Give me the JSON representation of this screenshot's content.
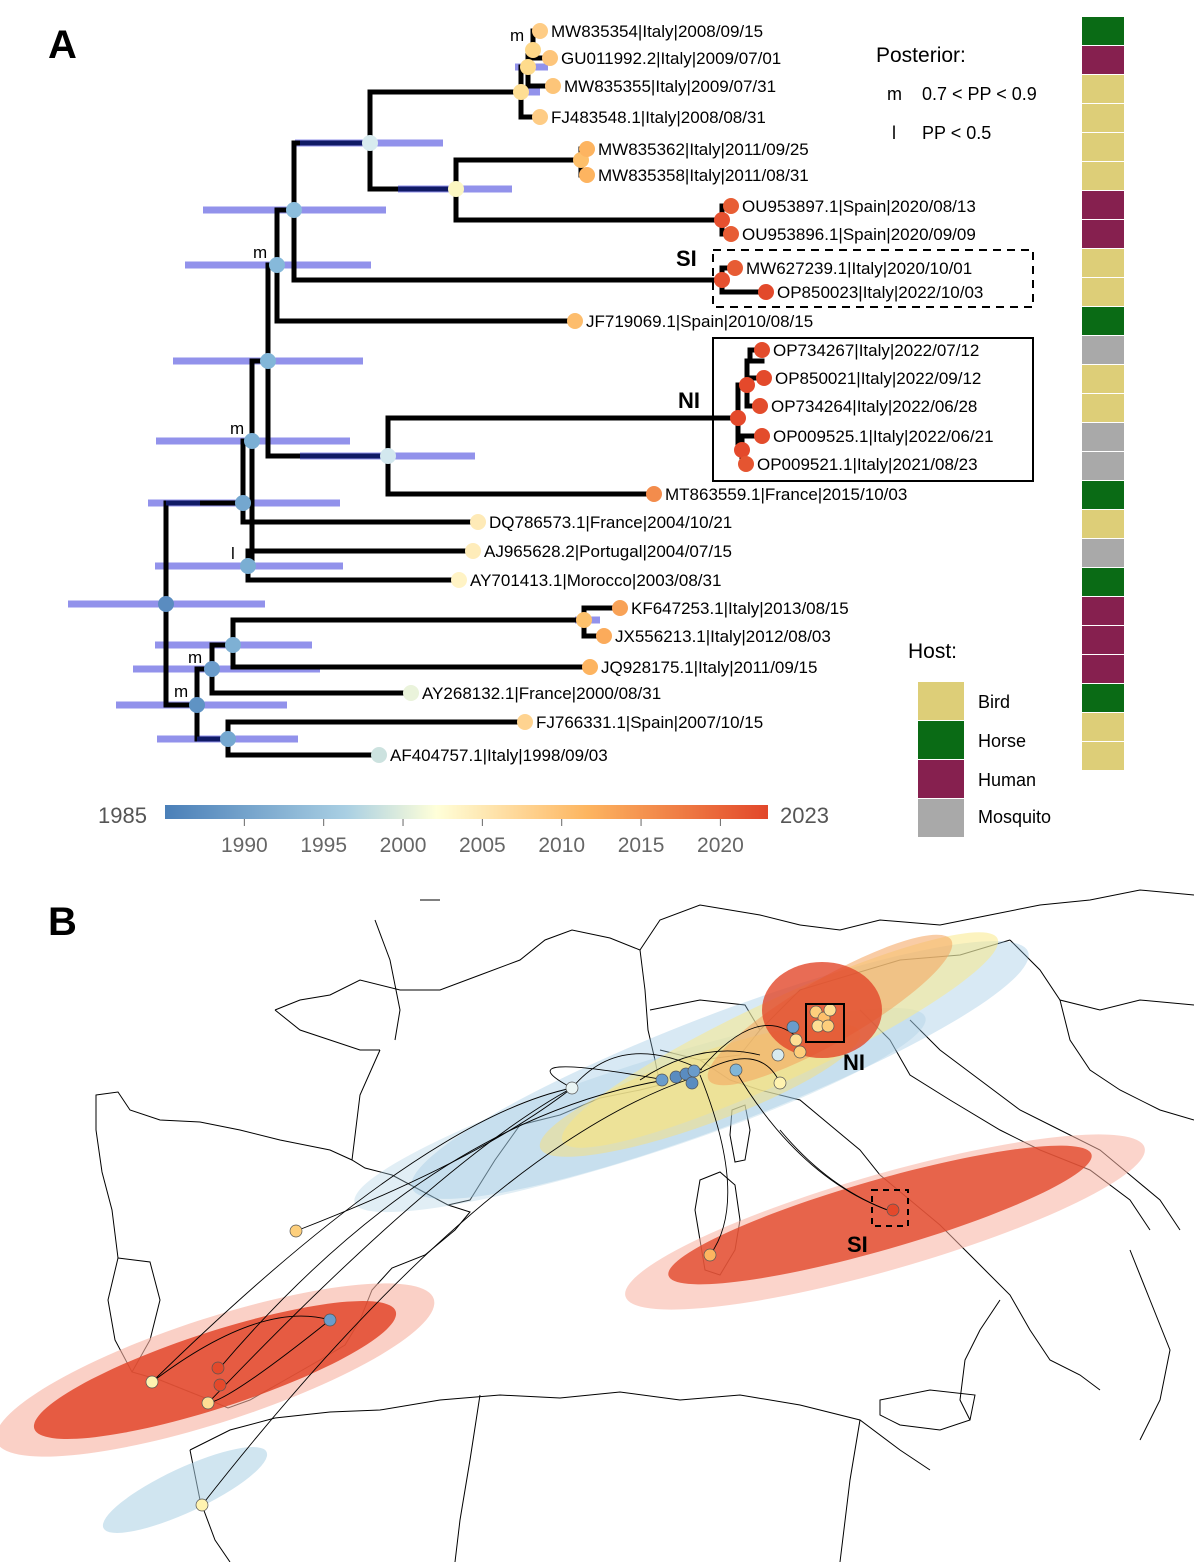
{
  "panel_a": {
    "letter": "A",
    "posterior": {
      "title": "Posterior:",
      "entries": [
        {
          "symbol": "m",
          "text": "0.7 < PP < 0.9"
        },
        {
          "symbol": "l",
          "text": "PP < 0.5"
        }
      ]
    },
    "host": {
      "title": "Host:",
      "entries": [
        {
          "label": "Bird",
          "color": "#DDCE78"
        },
        {
          "label": "Horse",
          "color": "#0A6B15"
        },
        {
          "label": "Human",
          "color": "#86204F"
        },
        {
          "label": "Mosquito",
          "color": "#A9A9A9"
        }
      ]
    },
    "groups": {
      "si": "SI",
      "ni": "NI"
    },
    "node_labels": [
      "m",
      "m",
      "m",
      "l",
      "m",
      "m"
    ],
    "tips": [
      {
        "label": "MW835354|Italy|2008/09/15",
        "year": 2008.7,
        "host": "Human"
      },
      {
        "label": "GU011992.2|Italy|2009/07/01",
        "year": 2009.5,
        "host": "Bird"
      },
      {
        "label": "MW835355|Italy|2009/07/31",
        "year": 2009.6,
        "host": "Bird"
      },
      {
        "label": "FJ483548.1|Italy|2008/08/31",
        "year": 2008.7,
        "host": "Bird"
      },
      {
        "label": "MW835362|Italy|2011/09/25",
        "year": 2011.7,
        "host": "Bird"
      },
      {
        "label": "MW835358|Italy|2011/08/31",
        "year": 2011.7,
        "host": "Human"
      },
      {
        "label": "OU953897.1|Spain|2020/08/13",
        "year": 2020.6,
        "host": "Human"
      },
      {
        "label": "OU953896.1|Spain|2020/09/09",
        "year": 2020.7,
        "host": "Bird"
      },
      {
        "label": "MW627239.1|Italy|2020/10/01",
        "year": 2020.8,
        "host": "Bird"
      },
      {
        "label": "OP850023|Italy|2022/10/03",
        "year": 2022.8,
        "host": "Horse"
      },
      {
        "label": "JF719069.1|Spain|2010/08/15",
        "year": 2010.6,
        "host": "Mosquito"
      },
      {
        "label": "OP734267|Italy|2022/07/12",
        "year": 2022.5,
        "host": "Bird"
      },
      {
        "label": "OP850021|Italy|2022/09/12",
        "year": 2022.7,
        "host": "Bird"
      },
      {
        "label": "OP734264|Italy|2022/06/28",
        "year": 2022.5,
        "host": "Mosquito"
      },
      {
        "label": "OP009525.1|Italy|2022/06/21",
        "year": 2022.5,
        "host": "Mosquito"
      },
      {
        "label": "OP009521.1|Italy|2021/08/23",
        "year": 2021.6,
        "host": "Horse"
      },
      {
        "label": "MT863559.1|France|2015/10/03",
        "year": 2015.8,
        "host": "Bird"
      },
      {
        "label": "DQ786573.1|France|2004/10/21",
        "year": 2004.8,
        "host": "Mosquito"
      },
      {
        "label": "AJ965628.2|Portugal|2004/07/15",
        "year": 2004.5,
        "host": "Horse"
      },
      {
        "label": "AY701413.1|Morocco|2003/08/31",
        "year": 2003.7,
        "host": "Human"
      },
      {
        "label": "KF647253.1|Italy|2013/08/15",
        "year": 2013.6,
        "host": "Human"
      },
      {
        "label": "JX556213.1|Italy|2012/08/03",
        "year": 2012.6,
        "host": "Human"
      },
      {
        "label": "JQ928175.1|Italy|2011/09/15",
        "year": 2011.7,
        "host": "Horse"
      },
      {
        "label": "AY268132.1|France|2000/08/31",
        "year": 2000.7,
        "host": "Bird"
      },
      {
        "label": "FJ766331.1|Spain|2007/10/15",
        "year": 2007.8,
        "host": "Bird"
      },
      {
        "label": "AF404757.1|Italy|1998/09/03",
        "year": 1998.7,
        "host": "Bird"
      }
    ],
    "host_strip": [
      "Horse",
      "Human",
      "Bird",
      "Bird",
      "Bird",
      "Bird",
      "Human",
      "Human",
      "Bird",
      "Bird",
      "Horse",
      "Mosquito",
      "Bird",
      "Bird",
      "Mosquito",
      "Mosquito",
      "Horse",
      "Bird",
      "Mosquito",
      "Horse",
      "Human",
      "Human",
      "Human",
      "Horse",
      "Bird",
      "Bird"
    ],
    "colorbar": {
      "min_label": "1985",
      "max_label": "2023",
      "min": 1985,
      "max": 2023,
      "ticks": [
        "1990",
        "1995",
        "2000",
        "2005",
        "2010",
        "2015",
        "2020"
      ],
      "colors": [
        "#4A7FB8",
        "#A9CFE3",
        "#FFFFD9",
        "#FDB560",
        "#E2472A"
      ]
    }
  },
  "panel_b": {
    "letter": "B",
    "groups": {
      "ni": "NI",
      "si": "SI"
    }
  }
}
